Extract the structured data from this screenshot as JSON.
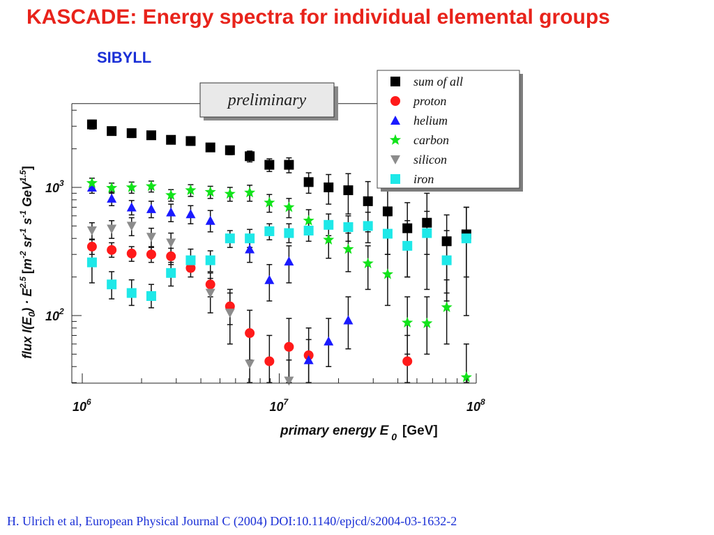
{
  "slide": {
    "title": "KASCADE: Energy spectra for individual elemental groups",
    "subtitle": "SIBYLL",
    "citation": "H. Ulrich et al, European Physical Journal C (2004) DOI:10.1140/epjcd/s2004-03-1632-2"
  },
  "chart_data": {
    "type": "scatter",
    "annotation": "preliminary",
    "xlabel": "primary energy E 0 [GeV]",
    "ylabel": "flux I(E0) · E^2.5 [m^-2 sr^-1 s^-1 GeV^1.5]",
    "x_scale": "log",
    "y_scale": "log",
    "xlim": [
      1000000,
      100000000
    ],
    "ylim": [
      30,
      4500
    ],
    "x_ticks": [
      {
        "base": "10",
        "exp": "6",
        "value": 1000000
      },
      {
        "base": "10",
        "exp": "7",
        "value": 10000000
      },
      {
        "base": "10",
        "exp": "8",
        "value": 100000000
      }
    ],
    "y_ticks": [
      {
        "base": "10",
        "exp": "2",
        "value": 100
      },
      {
        "base": "10",
        "exp": "3",
        "value": 1000
      }
    ],
    "grid": false,
    "legend_position": "top-right",
    "series": [
      {
        "name": "sum of all",
        "marker": "square",
        "color": "#000000",
        "x": [
          1120000.0,
          1410000.0,
          1780000.0,
          2240000.0,
          2820000.0,
          3550000.0,
          4470000.0,
          5620000.0,
          7080000.0,
          8910000.0,
          11200000.0,
          14100000.0,
          17800000.0,
          22400000.0,
          28200000.0,
          35500000.0,
          44700000.0,
          56200000.0,
          70800000.0,
          89100000.0
        ],
        "y": [
          3100,
          2750,
          2650,
          2550,
          2350,
          2300,
          2050,
          1950,
          1750,
          1500,
          1500,
          1100,
          1000,
          950,
          780,
          650,
          480,
          530,
          380,
          430
        ],
        "err_lo": [
          2850,
          2550,
          2450,
          2380,
          2200,
          2130,
          1900,
          1800,
          1580,
          1330,
          1300,
          900,
          740,
          620,
          450,
          300,
          200,
          160,
          150,
          100
        ],
        "err_hi": [
          3350,
          2950,
          2850,
          2720,
          2500,
          2470,
          2200,
          2100,
          1920,
          1670,
          1700,
          1300,
          1260,
          1280,
          1110,
          1000,
          760,
          900,
          610,
          700
        ]
      },
      {
        "name": "proton",
        "marker": "circle",
        "color": "#ff1a1a",
        "x": [
          1120000.0,
          1410000.0,
          1780000.0,
          2240000.0,
          2820000.0,
          3550000.0,
          4470000.0,
          5620000.0,
          7080000.0,
          8910000.0,
          11200000.0,
          14100000.0,
          44700000.0
        ],
        "y": [
          345,
          325,
          305,
          300,
          290,
          235,
          175,
          118,
          73,
          44,
          57,
          49,
          44
        ],
        "err_lo": [
          300,
          285,
          265,
          260,
          250,
          200,
          140,
          85,
          45,
          30,
          30,
          30,
          30
        ],
        "err_hi": [
          395,
          370,
          345,
          345,
          335,
          275,
          215,
          160,
          110,
          70,
          95,
          80,
          70
        ]
      },
      {
        "name": "helium",
        "marker": "triangle",
        "color": "#1a1aff",
        "x": [
          1120000.0,
          1410000.0,
          1780000.0,
          2240000.0,
          2820000.0,
          3550000.0,
          4470000.0,
          7080000.0,
          8910000.0,
          11200000.0,
          14100000.0,
          17800000.0,
          22400000.0
        ],
        "y": [
          1000,
          820,
          700,
          680,
          640,
          620,
          550,
          330,
          190,
          265,
          45,
          63,
          92
        ],
        "err_lo": [
          900,
          720,
          610,
          580,
          540,
          520,
          450,
          260,
          130,
          180,
          30,
          40,
          55
        ],
        "err_hi": [
          1100,
          920,
          790,
          780,
          740,
          720,
          660,
          400,
          250,
          350,
          65,
          95,
          140
        ]
      },
      {
        "name": "carbon",
        "marker": "star",
        "color": "#11e31a",
        "x": [
          1120000.0,
          1410000.0,
          1780000.0,
          2240000.0,
          2820000.0,
          3550000.0,
          4470000.0,
          5620000.0,
          7080000.0,
          8910000.0,
          11200000.0,
          14100000.0,
          17800000.0,
          22400000.0,
          28200000.0,
          35500000.0,
          44700000.0,
          56200000.0,
          70800000.0,
          89100000.0
        ],
        "y": [
          1080,
          990,
          1000,
          1020,
          870,
          950,
          920,
          890,
          910,
          760,
          700,
          550,
          390,
          330,
          255,
          210,
          88,
          87,
          116,
          33
        ],
        "err_lo": [
          980,
          900,
          900,
          920,
          780,
          850,
          820,
          780,
          780,
          640,
          580,
          430,
          280,
          220,
          160,
          120,
          50,
          50,
          60,
          30
        ],
        "err_hi": [
          1180,
          1080,
          1100,
          1120,
          960,
          1050,
          1020,
          1000,
          1040,
          880,
          820,
          670,
          500,
          440,
          350,
          300,
          140,
          140,
          190,
          60
        ]
      },
      {
        "name": "silicon",
        "marker": "triangle-down",
        "color": "#8c8c8c",
        "x": [
          1120000.0,
          1410000.0,
          1780000.0,
          2240000.0,
          2820000.0,
          4470000.0,
          5620000.0,
          7080000.0,
          11200000.0
        ],
        "y": [
          460,
          475,
          500,
          410,
          370,
          150,
          105,
          42,
          31
        ],
        "err_lo": [
          390,
          400,
          420,
          340,
          300,
          105,
          60,
          30,
          30
        ],
        "err_hi": [
          530,
          550,
          580,
          480,
          440,
          195,
          150,
          70,
          45
        ]
      },
      {
        "name": "iron",
        "marker": "square",
        "color": "#1ee8e8",
        "x": [
          1120000.0,
          1410000.0,
          1780000.0,
          2240000.0,
          2820000.0,
          3550000.0,
          4470000.0,
          5620000.0,
          7080000.0,
          8910000.0,
          11200000.0,
          14100000.0,
          17800000.0,
          22400000.0,
          28200000.0,
          35500000.0,
          44700000.0,
          56200000.0,
          70800000.0,
          89100000.0
        ],
        "y": [
          260,
          175,
          150,
          142,
          215,
          270,
          270,
          400,
          400,
          455,
          440,
          460,
          510,
          490,
          500,
          435,
          350,
          440,
          270,
          400
        ],
        "err_lo": [
          180,
          135,
          120,
          115,
          170,
          220,
          220,
          340,
          340,
          390,
          370,
          380,
          420,
          380,
          370,
          300,
          200,
          300,
          130,
          200
        ],
        "err_hi": [
          330,
          220,
          190,
          175,
          260,
          330,
          320,
          460,
          470,
          520,
          520,
          560,
          620,
          600,
          640,
          600,
          550,
          650,
          460,
          700
        ]
      }
    ]
  }
}
